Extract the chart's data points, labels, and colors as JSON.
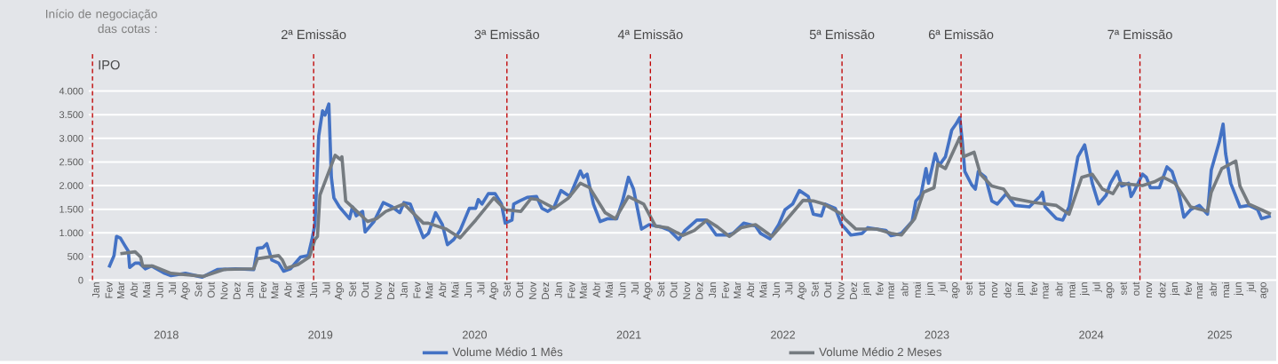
{
  "chart_data": {
    "type": "line",
    "xlim": [
      "2017-12-15",
      "2025-08-31"
    ],
    "ylim": [
      0,
      4800
    ],
    "yticks": [
      0,
      500,
      {
        "value": 1000,
        "label": "1.000"
      },
      {
        "value": 1500,
        "label": "1.500"
      },
      {
        "value": 2000,
        "label": "2.000"
      },
      {
        "value": 2500,
        "label": "2.500"
      },
      {
        "value": 3000,
        "label": "3.000"
      },
      {
        "value": 3500,
        "label": "3.500"
      },
      {
        "value": 4000,
        "label": "4.000"
      }
    ],
    "xticks": [
      {
        "value": "2018-01-01",
        "label": "Jan"
      },
      {
        "value": "2018-02-01",
        "label": "Fev"
      },
      {
        "value": "2018-03-01",
        "label": "Mar"
      },
      {
        "value": "2018-04-01",
        "label": "Abr"
      },
      {
        "value": "2018-05-01",
        "label": "Mai"
      },
      {
        "value": "2018-06-01",
        "label": "Jun"
      },
      {
        "value": "2018-07-01",
        "label": "Jul"
      },
      {
        "value": "2018-08-01",
        "label": "Ago"
      },
      {
        "value": "2018-09-01",
        "label": "Set"
      },
      {
        "value": "2018-10-01",
        "label": "Out"
      },
      {
        "value": "2018-11-01",
        "label": "Nov"
      },
      {
        "value": "2018-12-01",
        "label": "Dez"
      },
      {
        "value": "2019-01-01",
        "label": "Jan"
      },
      {
        "value": "2019-02-01",
        "label": "Fev"
      },
      {
        "value": "2019-03-01",
        "label": "Mar"
      },
      {
        "value": "2019-04-01",
        "label": "Abr"
      },
      {
        "value": "2019-05-01",
        "label": "Mai"
      },
      {
        "value": "2019-06-01",
        "label": "Jun"
      },
      {
        "value": "2019-07-01",
        "label": "Jul"
      },
      {
        "value": "2019-08-01",
        "label": "Ago"
      },
      {
        "value": "2019-09-01",
        "label": "Set"
      },
      {
        "value": "2019-10-01",
        "label": "Out"
      },
      {
        "value": "2019-11-01",
        "label": "Nov"
      },
      {
        "value": "2019-12-01",
        "label": "Dez"
      },
      {
        "value": "2020-01-01",
        "label": "Jan"
      },
      {
        "value": "2020-02-01",
        "label": "Fev"
      },
      {
        "value": "2020-03-01",
        "label": "Mar"
      },
      {
        "value": "2020-04-01",
        "label": "Abr"
      },
      {
        "value": "2020-05-01",
        "label": "Mai"
      },
      {
        "value": "2020-06-01",
        "label": "Jun"
      },
      {
        "value": "2020-07-01",
        "label": "Jul"
      },
      {
        "value": "2020-08-01",
        "label": "Ago"
      },
      {
        "value": "2020-09-01",
        "label": "Set"
      },
      {
        "value": "2020-10-01",
        "label": "Out"
      },
      {
        "value": "2020-11-01",
        "label": "Nov"
      },
      {
        "value": "2020-12-01",
        "label": "Dez"
      },
      {
        "value": "2021-01-01",
        "label": "Jan"
      },
      {
        "value": "2021-02-01",
        "label": "Fev"
      },
      {
        "value": "2021-03-01",
        "label": "Mar"
      },
      {
        "value": "2021-04-01",
        "label": "Abr"
      },
      {
        "value": "2021-05-01",
        "label": "Mai"
      },
      {
        "value": "2021-06-01",
        "label": "Jun"
      },
      {
        "value": "2021-07-01",
        "label": "Jul"
      },
      {
        "value": "2021-08-01",
        "label": "Ago"
      },
      {
        "value": "2021-09-01",
        "label": "Set"
      },
      {
        "value": "2021-10-01",
        "label": "Out"
      },
      {
        "value": "2021-11-01",
        "label": "Nov"
      },
      {
        "value": "2021-12-01",
        "label": "Dez"
      },
      {
        "value": "2022-01-01",
        "label": "Jan"
      },
      {
        "value": "2022-02-01",
        "label": "Fev"
      },
      {
        "value": "2022-03-01",
        "label": "Mar"
      },
      {
        "value": "2022-04-01",
        "label": "Abr"
      },
      {
        "value": "2022-05-01",
        "label": "Mai"
      },
      {
        "value": "2022-06-01",
        "label": "Jun"
      },
      {
        "value": "2022-07-01",
        "label": "Jul"
      },
      {
        "value": "2022-08-01",
        "label": "Ago"
      },
      {
        "value": "2022-09-01",
        "label": "Set"
      },
      {
        "value": "2022-10-01",
        "label": "Out"
      },
      {
        "value": "2022-11-01",
        "label": "Nov"
      },
      {
        "value": "2022-12-01",
        "label": "Dez"
      },
      {
        "value": "2023-01-01",
        "label": "jan"
      },
      {
        "value": "2023-02-01",
        "label": "fev"
      },
      {
        "value": "2023-03-01",
        "label": "mar"
      },
      {
        "value": "2023-04-01",
        "label": "abr"
      },
      {
        "value": "2023-05-01",
        "label": "mai"
      },
      {
        "value": "2023-06-01",
        "label": "jun"
      },
      {
        "value": "2023-07-01",
        "label": "jul"
      },
      {
        "value": "2023-08-01",
        "label": "ago"
      },
      {
        "value": "2023-09-01",
        "label": "set"
      },
      {
        "value": "2023-10-01",
        "label": "out"
      },
      {
        "value": "2023-11-01",
        "label": "nov"
      },
      {
        "value": "2023-12-01",
        "label": "dez"
      },
      {
        "value": "2024-01-01",
        "label": "jan"
      },
      {
        "value": "2024-02-01",
        "label": "fev"
      },
      {
        "value": "2024-03-01",
        "label": "mar"
      },
      {
        "value": "2024-04-01",
        "label": "abr"
      },
      {
        "value": "2024-05-01",
        "label": "mai"
      },
      {
        "value": "2024-06-01",
        "label": "jun"
      },
      {
        "value": "2024-07-01",
        "label": "jul"
      },
      {
        "value": "2024-08-01",
        "label": "ago"
      },
      {
        "value": "2024-09-01",
        "label": "set"
      },
      {
        "value": "2024-10-01",
        "label": "out"
      },
      {
        "value": "2024-11-01",
        "label": "nov"
      },
      {
        "value": "2024-12-01",
        "label": "dez"
      },
      {
        "value": "2025-01-01",
        "label": "jan"
      },
      {
        "value": "2025-02-01",
        "label": "fev"
      },
      {
        "value": "2025-03-01",
        "label": "mar"
      },
      {
        "value": "2025-04-01",
        "label": "abr"
      },
      {
        "value": "2025-05-01",
        "label": "mai"
      },
      {
        "value": "2025-06-01",
        "label": "jun"
      },
      {
        "value": "2025-07-01",
        "label": "jul"
      },
      {
        "value": "2025-08-01",
        "label": "ago"
      }
    ],
    "grid": "y",
    "legend": "bottom",
    "series": [
      {
        "name": "Volume Médio 1 Mês",
        "color": "#4472c4",
        "x": [
          "2018-02-01",
          "2018-02-13",
          "2018-02-19",
          "2018-02-28",
          "2018-03-10",
          "2018-03-19",
          "2018-03-22",
          "2018-04-04",
          "2018-04-14",
          "2018-04-28",
          "2018-05-13",
          "2018-06-13",
          "2018-06-28",
          "2018-08-01",
          "2018-09-10",
          "2018-10-16",
          "2018-11-28",
          "2019-01-10",
          "2019-01-19",
          "2019-02-01",
          "2019-02-10",
          "2019-02-22",
          "2019-03-10",
          "2019-03-22",
          "2019-04-07",
          "2019-05-01",
          "2019-05-19",
          "2019-05-28",
          "2019-06-04",
          "2019-06-13",
          "2019-06-22",
          "2019-06-28",
          "2019-07-07",
          "2019-07-13",
          "2019-07-19",
          "2019-08-01",
          "2019-08-25",
          "2019-09-01",
          "2019-09-10",
          "2019-09-25",
          "2019-10-01",
          "2019-10-22",
          "2019-11-13",
          "2019-12-04",
          "2019-12-22",
          "2020-01-01",
          "2020-01-16",
          "2020-02-04",
          "2020-02-16",
          "2020-02-28",
          "2020-03-16",
          "2020-04-01",
          "2020-04-13",
          "2020-04-28",
          "2020-05-13",
          "2020-06-04",
          "2020-06-19",
          "2020-06-25",
          "2020-07-04",
          "2020-07-19",
          "2020-08-04",
          "2020-08-19",
          "2020-08-28",
          "2020-09-13",
          "2020-09-17",
          "2020-10-01",
          "2020-10-19",
          "2020-11-10",
          "2020-11-23",
          "2020-12-07",
          "2020-12-22",
          "2021-01-07",
          "2021-01-28",
          "2021-02-22",
          "2021-03-01",
          "2021-03-10",
          "2021-03-25",
          "2021-04-10",
          "2021-04-28",
          "2021-05-19",
          "2021-06-02",
          "2021-06-16",
          "2021-06-28",
          "2021-07-17",
          "2021-08-04",
          "2021-09-01",
          "2021-09-22",
          "2021-10-13",
          "2021-10-28",
          "2021-11-25",
          "2021-12-16",
          "2022-01-10",
          "2022-02-04",
          "2022-02-19",
          "2022-03-16",
          "2022-04-13",
          "2022-04-25",
          "2022-05-17",
          "2022-06-07",
          "2022-06-22",
          "2022-07-10",
          "2022-07-26",
          "2022-08-16",
          "2022-08-28",
          "2022-09-16",
          "2022-09-25",
          "2022-10-19",
          "2022-11-03",
          "2022-11-10",
          "2022-11-25",
          "2022-12-22",
          "2023-01-04",
          "2023-02-16",
          "2023-02-28",
          "2023-03-25",
          "2023-04-19",
          "2023-04-28",
          "2023-05-10",
          "2023-05-22",
          "2023-05-28",
          "2023-06-13",
          "2023-06-22",
          "2023-07-07",
          "2023-07-22",
          "2023-08-01",
          "2023-08-10",
          "2023-08-16",
          "2023-08-22",
          "2023-09-07",
          "2023-09-16",
          "2023-09-23",
          "2023-10-10",
          "2023-10-25",
          "2023-11-07",
          "2023-11-28",
          "2023-12-19",
          "2024-01-22",
          "2024-02-16",
          "2024-02-22",
          "2024-02-28",
          "2024-03-26",
          "2024-04-10",
          "2024-04-25",
          "2024-05-07",
          "2024-05-16",
          "2024-06-01",
          "2024-06-19",
          "2024-07-04",
          "2024-07-22",
          "2024-08-01",
          "2024-08-17",
          "2024-08-28",
          "2024-09-13",
          "2024-09-19",
          "2024-09-25",
          "2024-10-16",
          "2024-10-25",
          "2024-11-04",
          "2024-11-25",
          "2024-12-13",
          "2024-12-25",
          "2025-01-10",
          "2025-01-22",
          "2025-02-07",
          "2025-02-28",
          "2025-03-19",
          "2025-03-28",
          "2025-04-16",
          "2025-04-25",
          "2025-05-01",
          "2025-05-13",
          "2025-06-04",
          "2025-06-25",
          "2025-07-16",
          "2025-07-25",
          "2025-08-16"
        ],
        "values": [
          270,
          520,
          925,
          890,
          740,
          610,
          270,
          360,
          360,
          240,
          300,
          145,
          95,
          145,
          65,
          225,
          240,
          225,
          675,
          690,
          770,
          425,
          360,
          190,
          240,
          490,
          520,
          860,
          1175,
          3050,
          3580,
          3490,
          3725,
          2175,
          1740,
          1550,
          1300,
          1550,
          1360,
          1455,
          1020,
          1240,
          1640,
          1550,
          1425,
          1640,
          1610,
          1175,
          900,
          990,
          1425,
          1175,
          750,
          860,
          1050,
          1520,
          1520,
          1705,
          1610,
          1830,
          1830,
          1610,
          1205,
          1270,
          1610,
          1675,
          1750,
          1770,
          1520,
          1455,
          1550,
          1895,
          1770,
          2310,
          2175,
          2240,
          1610,
          1240,
          1300,
          1300,
          1675,
          2175,
          1925,
          1080,
          1175,
          1125,
          1050,
          860,
          1050,
          1270,
          1270,
          955,
          955,
          990,
          1205,
          1145,
          990,
          875,
          1175,
          1490,
          1610,
          1895,
          1770,
          1395,
          1360,
          1610,
          1520,
          1175,
          1110,
          955,
          990,
          1110,
          1050,
          940,
          990,
          1240,
          1675,
          1800,
          2360,
          2050,
          2675,
          2425,
          2610,
          3175,
          3300,
          3440,
          2925,
          2300,
          2020,
          1925,
          2300,
          2175,
          1675,
          1610,
          1830,
          1580,
          1550,
          1770,
          1860,
          1550,
          1300,
          1270,
          1550,
          2175,
          2610,
          2860,
          2050,
          1610,
          1800,
          2050,
          2300,
          1990,
          2050,
          1770,
          1860,
          2240,
          2175,
          1955,
          1955,
          2395,
          2300,
          1860,
          1330,
          1490,
          1580,
          1395,
          2330,
          2925,
          3300,
          2675,
          2050,
          1550,
          1580,
          1490,
          1300,
          1360
        ]
      },
      {
        "name": "Volume Médio 2 Meses",
        "color": "#757b80",
        "x": [
          "2018-02-28",
          "2018-04-04",
          "2018-04-17",
          "2018-04-22",
          "2018-05-16",
          "2018-06-28",
          "2018-09-13",
          "2018-11-01",
          "2019-01-10",
          "2019-01-19",
          "2019-03-10",
          "2019-03-19",
          "2019-03-28",
          "2019-04-25",
          "2019-05-22",
          "2019-06-04",
          "2019-06-10",
          "2019-06-16",
          "2019-07-22",
          "2019-08-04",
          "2019-08-07",
          "2019-08-16",
          "2019-09-04",
          "2019-10-07",
          "2019-10-28",
          "2019-11-19",
          "2020-01-01",
          "2020-01-22",
          "2020-02-16",
          "2020-02-28",
          "2020-04-10",
          "2020-05-13",
          "2020-06-19",
          "2020-08-01",
          "2020-08-28",
          "2020-10-04",
          "2020-10-28",
          "2020-11-13",
          "2020-12-22",
          "2021-01-25",
          "2021-02-22",
          "2021-03-16",
          "2021-04-22",
          "2021-05-16",
          "2021-06-16",
          "2021-07-22",
          "2021-08-19",
          "2021-09-16",
          "2021-10-22",
          "2021-11-19",
          "2021-12-19",
          "2022-01-13",
          "2022-02-10",
          "2022-03-10",
          "2022-04-13",
          "2022-05-22",
          "2022-06-22",
          "2022-08-04",
          "2022-08-28",
          "2022-09-22",
          "2022-11-03",
          "2022-11-10",
          "2022-12-07",
          "2023-01-25",
          "2023-02-28",
          "2023-03-25",
          "2023-04-25",
          "2023-05-16",
          "2023-06-10",
          "2023-06-19",
          "2023-07-07",
          "2023-08-10",
          "2023-08-19",
          "2023-09-13",
          "2023-09-28",
          "2023-10-25",
          "2023-11-22",
          "2023-12-07",
          "2024-02-01",
          "2024-03-26",
          "2024-04-25",
          "2024-05-25",
          "2024-06-19",
          "2024-07-13",
          "2024-08-07",
          "2024-08-22",
          "2024-10-16",
          "2024-11-13",
          "2024-12-04",
          "2025-01-01",
          "2025-02-07",
          "2025-03-19",
          "2025-03-28",
          "2025-04-22",
          "2025-05-25",
          "2025-06-04",
          "2025-06-25",
          "2025-07-28",
          "2025-08-16"
        ],
        "values": [
          560,
          600,
          490,
          300,
          300,
          145,
          80,
          225,
          240,
          455,
          520,
          425,
          250,
          330,
          490,
          860,
          925,
          1800,
          2640,
          2550,
          2610,
          1675,
          1520,
          1240,
          1300,
          1455,
          1610,
          1425,
          1205,
          1205,
          1080,
          895,
          1270,
          1740,
          1490,
          1455,
          1725,
          1705,
          1520,
          1740,
          2050,
          1955,
          1425,
          1300,
          1770,
          1610,
          1145,
          1110,
          945,
          1050,
          1270,
          1125,
          925,
          1110,
          1175,
          925,
          1240,
          1690,
          1675,
          1610,
          1395,
          1300,
          1080,
          1080,
          990,
          955,
          1300,
          1860,
          1955,
          2455,
          2360,
          3020,
          2610,
          2705,
          2240,
          1990,
          1925,
          1740,
          1645,
          1580,
          1395,
          2175,
          2240,
          1925,
          1830,
          2050,
          2000,
          2080,
          2175,
          2050,
          1550,
          1455,
          1860,
          2360,
          2520,
          1990,
          1610,
          1475,
          1395
        ]
      }
    ],
    "ref_lines": [
      {
        "axis": "x",
        "value": "2017-12-24",
        "label": "IPO",
        "color": "#c00000",
        "line_style": "dashed"
      },
      {
        "axis": "x",
        "value": "2019-06-01",
        "label": "2ª Emissão",
        "color": "#c00000",
        "line_style": "dashed"
      },
      {
        "axis": "x",
        "value": "2020-09-01",
        "label": "3ª Emissão",
        "color": "#c00000",
        "line_style": "dashed"
      },
      {
        "axis": "x",
        "value": "2021-08-07",
        "label": "4ª Emissão",
        "color": "#c00000",
        "line_style": "dashed"
      },
      {
        "axis": "x",
        "value": "2022-11-04",
        "label": "5ª Emissão",
        "color": "#c00000",
        "line_style": "dashed"
      },
      {
        "axis": "x",
        "value": "2023-08-13",
        "label": "6ª Emissão",
        "color": "#c00000",
        "line_style": "dashed"
      },
      {
        "axis": "x",
        "value": "2024-10-10",
        "label": "7ª Emissão",
        "color": "#c00000",
        "line_style": "dashed"
      }
    ],
    "annotations": [
      "Início de negociação das cotas :",
      "2018",
      "2019",
      "2020",
      "2021",
      "2022",
      "2023",
      "2024",
      "2025"
    ]
  }
}
